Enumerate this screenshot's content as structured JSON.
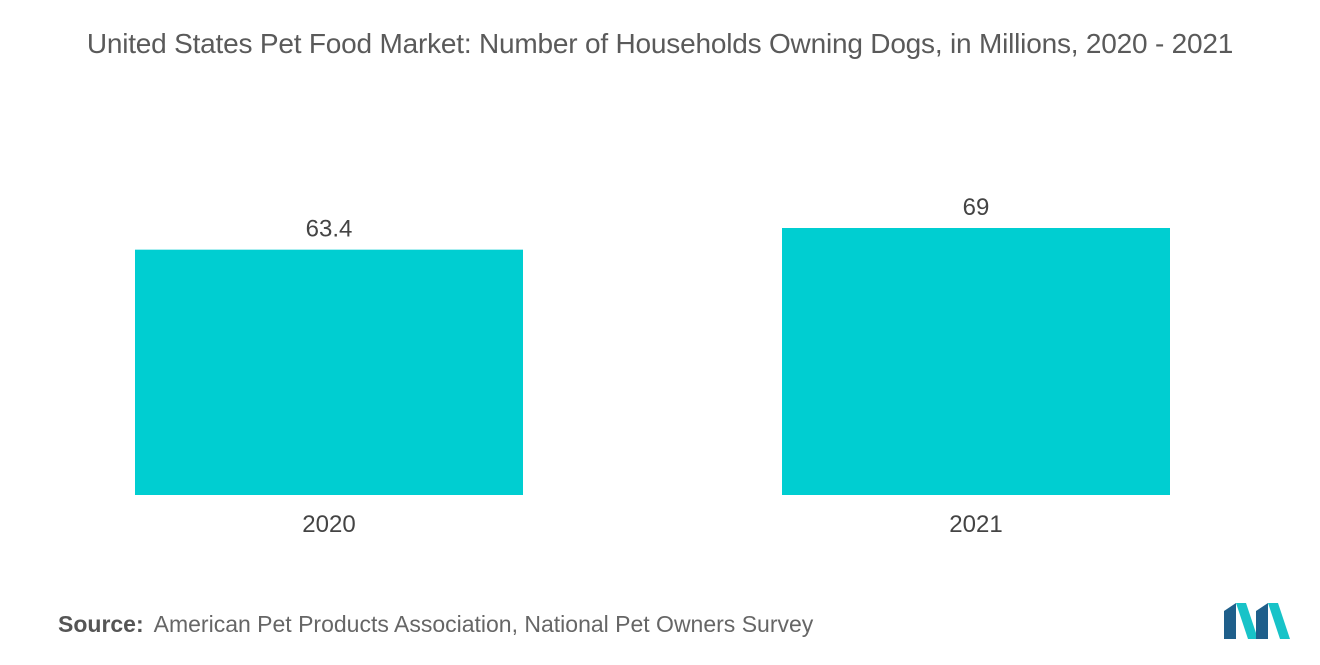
{
  "title": "United States Pet Food Market: Number of Households Owning Dogs, in Millions, 2020 - 2021",
  "source": {
    "label": "Source:",
    "text": "American Pet Products Association, National Pet Owners Survey"
  },
  "logo_icon": "mordor-intelligence-logo-icon",
  "colors": {
    "bar": "#00ced1",
    "logo_dark": "#1f5f8b",
    "logo_light": "#18c3c8"
  },
  "chart_data": {
    "type": "bar",
    "title": "United States Pet Food Market: Number of Households Owning Dogs, in Millions, 2020 - 2021",
    "categories": [
      "2020",
      "2021"
    ],
    "values": [
      63.4,
      69
    ],
    "value_labels": [
      "63.4",
      "69"
    ],
    "xlabel": "",
    "ylabel": "",
    "ylim": [
      0,
      69
    ],
    "grid": false,
    "legend": "none"
  }
}
